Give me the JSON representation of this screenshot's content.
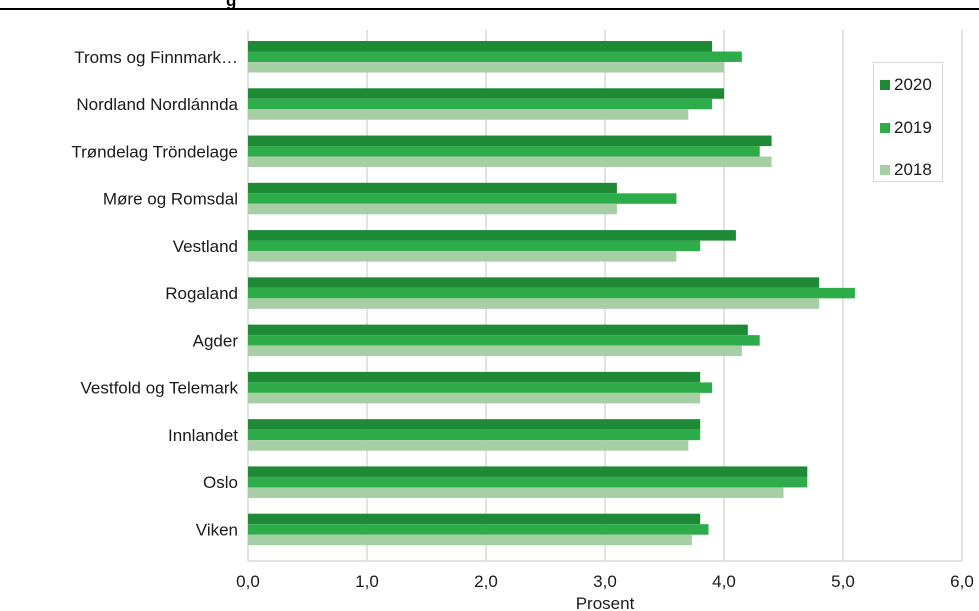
{
  "chart_data": {
    "type": "bar",
    "orientation": "horizontal",
    "title": "",
    "partial_title_text": "g",
    "xlabel": "Prosent",
    "ylabel": "",
    "xlim": [
      0,
      6
    ],
    "x_ticks": [
      "0,0",
      "1,0",
      "2,0",
      "3,0",
      "4,0",
      "5,0",
      "6,0"
    ],
    "grid": true,
    "legend_position": "top-right",
    "categories": [
      "Troms og Finnmark…",
      "Nordland Nordlánnda",
      "Trøndelag Tröndelage",
      "Møre og Romsdal",
      "Vestland",
      "Rogaland",
      "Agder",
      "Vestfold og Telemark",
      "Innlandet",
      "Oslo",
      "Viken"
    ],
    "series": [
      {
        "name": "2020",
        "color": "#1e8a36",
        "values": [
          3.9,
          4.0,
          4.4,
          3.1,
          4.1,
          4.8,
          4.2,
          3.8,
          3.8,
          4.7,
          3.8
        ]
      },
      {
        "name": "2019",
        "color": "#2fac4a",
        "values": [
          4.15,
          3.9,
          4.3,
          3.6,
          3.8,
          5.1,
          4.3,
          3.9,
          3.8,
          4.7,
          3.87
        ]
      },
      {
        "name": "2018",
        "color": "#a6cfa6",
        "values": [
          4.0,
          3.7,
          4.4,
          3.1,
          3.6,
          4.8,
          4.15,
          3.8,
          3.7,
          4.5,
          3.73
        ]
      }
    ]
  }
}
